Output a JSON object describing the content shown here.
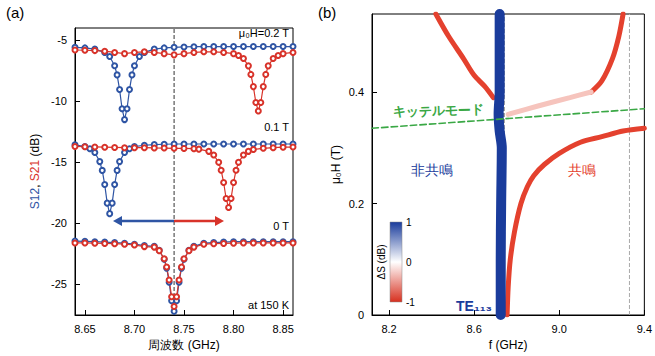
{
  "chart_data": [
    {
      "type": "line",
      "label": "(a)",
      "xlabel": "周波数 (GHz)",
      "ylabel": "S12, S21 (dB)",
      "xlim": [
        8.64,
        8.86
      ],
      "xticks": [
        8.65,
        {
          "value": 8.7,
          "label": "8.70"
        },
        8.75,
        {
          "value": 8.8,
          "label": "8.80"
        },
        8.85
      ],
      "ylim": [
        -27.5,
        -4
      ],
      "yticks": [
        -25,
        -20,
        -15,
        -10,
        -5
      ],
      "grid": false,
      "marker": "circle_open",
      "annotations": [
        "μ₀H=0.2 T",
        "0.1 T",
        "0 T",
        "at 150 K"
      ],
      "vlines": [
        8.74
      ],
      "series": [
        {
          "name": "S12",
          "color": "#2f55a4",
          "x": [
            8.64,
            8.65,
            8.66,
            8.67,
            8.675,
            8.68,
            8.6825,
            8.685,
            8.6875,
            8.69,
            8.6925,
            8.695,
            8.6975,
            8.7,
            8.705,
            8.71,
            8.72,
            8.73,
            8.74,
            8.75,
            8.76,
            8.77,
            8.78,
            8.79,
            8.8,
            8.81,
            8.82,
            8.83,
            8.84,
            8.85,
            8.86
          ],
          "values": [
            -5.58,
            -5.63,
            -5.73,
            -6.0,
            -6.33,
            -7.09,
            -7.84,
            -9.04,
            -10.61,
            -11.5,
            -10.61,
            -9.04,
            -7.84,
            -7.09,
            -6.33,
            -6.0,
            -5.73,
            -5.63,
            -5.58,
            -5.55,
            -5.53,
            -5.52,
            -5.52,
            -5.52,
            -5.52,
            -5.52,
            -5.52,
            -5.52,
            -5.52,
            -5.52,
            -5.52
          ]
        },
        {
          "name": "S21",
          "color": "#d8332a",
          "x": [
            8.64,
            8.65,
            8.66,
            8.67,
            8.68,
            8.69,
            8.7,
            8.71,
            8.72,
            8.73,
            8.74,
            8.75,
            8.76,
            8.77,
            8.78,
            8.79,
            8.8,
            8.805,
            8.81,
            8.815,
            8.8175,
            8.82,
            8.8225,
            8.825,
            8.8275,
            8.83,
            8.8325,
            8.835,
            8.84,
            8.845,
            8.85,
            8.86
          ],
          "values": [
            -5.8,
            -5.82,
            -5.85,
            -5.9,
            -6.0,
            -6.1,
            -6.0,
            -5.95,
            -6.0,
            -6.1,
            -6.2,
            -6.1,
            -6.0,
            -5.95,
            -5.95,
            -6.0,
            -6.1,
            -6.25,
            -6.5,
            -7.1,
            -7.8,
            -8.8,
            -10.1,
            -10.8,
            -10.1,
            -8.8,
            -7.8,
            -7.1,
            -6.5,
            -6.25,
            -6.1,
            -6.0
          ]
        },
        {
          "name": "S12",
          "color": "#2f55a4",
          "x": [
            8.64,
            8.65,
            8.655,
            8.66,
            8.665,
            8.6675,
            8.67,
            8.6725,
            8.675,
            8.6775,
            8.68,
            8.6825,
            8.685,
            8.69,
            8.695,
            8.7,
            8.71,
            8.72,
            8.73,
            8.74,
            8.75,
            8.76,
            8.77,
            8.78,
            8.79,
            8.8,
            8.81,
            8.82,
            8.83,
            8.84,
            8.85,
            8.86
          ],
          "values": [
            -13.57,
            -13.71,
            -13.88,
            -14.2,
            -14.94,
            -15.66,
            -16.82,
            -18.34,
            -19.2,
            -18.34,
            -16.82,
            -15.66,
            -14.94,
            -14.2,
            -13.88,
            -13.71,
            -13.6,
            -13.55,
            -13.52,
            -13.5,
            -13.5,
            -13.5,
            -13.5,
            -13.5,
            -13.5,
            -13.5,
            -13.5,
            -13.5,
            -13.5,
            -13.5,
            -13.5,
            -13.5
          ]
        },
        {
          "name": "S21",
          "color": "#d8332a",
          "x": [
            8.64,
            8.65,
            8.66,
            8.67,
            8.68,
            8.69,
            8.7,
            8.71,
            8.72,
            8.73,
            8.74,
            8.75,
            8.76,
            8.765,
            8.775,
            8.78,
            8.785,
            8.7875,
            8.79,
            8.7925,
            8.795,
            8.7975,
            8.8,
            8.8025,
            8.805,
            8.81,
            8.815,
            8.82,
            8.83,
            8.84,
            8.85,
            8.86
          ],
          "values": [
            -13.7,
            -13.72,
            -13.74,
            -13.76,
            -13.78,
            -13.8,
            -13.8,
            -13.8,
            -13.82,
            -13.83,
            -13.85,
            -13.86,
            -13.88,
            -13.92,
            -14.1,
            -14.4,
            -15.0,
            -15.65,
            -16.65,
            -17.96,
            -18.7,
            -17.96,
            -16.65,
            -15.65,
            -15.0,
            -14.4,
            -14.1,
            -13.95,
            -13.85,
            -13.8,
            -13.76,
            -13.75
          ]
        },
        {
          "name": "S12",
          "color": "#2f55a4",
          "x": [
            8.64,
            8.65,
            8.66,
            8.67,
            8.68,
            8.69,
            8.7,
            8.71,
            8.72,
            8.725,
            8.73,
            8.7325,
            8.735,
            8.7375,
            8.74,
            8.7425,
            8.745,
            8.7475,
            8.75,
            8.755,
            8.76,
            8.77,
            8.78,
            8.79,
            8.8,
            8.81,
            8.82,
            8.83,
            8.84,
            8.85,
            8.86
          ],
          "values": [
            -21.45,
            -21.47,
            -21.5,
            -21.53,
            -21.57,
            -21.62,
            -21.7,
            -21.82,
            -21.88,
            -22.2,
            -22.94,
            -23.66,
            -24.82,
            -26.34,
            -27.2,
            -26.34,
            -24.82,
            -23.66,
            -22.94,
            -22.2,
            -21.88,
            -21.62,
            -21.57,
            -21.53,
            -21.5,
            -21.5,
            -21.5,
            -21.5,
            -21.5,
            -21.5,
            -21.5
          ]
        },
        {
          "name": "S21",
          "color": "#d8332a",
          "x": [
            8.64,
            8.65,
            8.66,
            8.67,
            8.68,
            8.69,
            8.7,
            8.71,
            8.72,
            8.725,
            8.73,
            8.7325,
            8.735,
            8.7375,
            8.74,
            8.7425,
            8.745,
            8.7475,
            8.75,
            8.755,
            8.76,
            8.77,
            8.78,
            8.79,
            8.8,
            8.81,
            8.82,
            8.83,
            8.84,
            8.85,
            8.86
          ],
          "values": [
            -21.6,
            -21.6,
            -21.62,
            -21.64,
            -21.66,
            -21.7,
            -21.77,
            -21.9,
            -21.94,
            -22.23,
            -22.9,
            -23.57,
            -24.63,
            -26.0,
            -26.8,
            -26.0,
            -24.63,
            -23.57,
            -22.9,
            -22.23,
            -21.94,
            -21.7,
            -21.66,
            -21.64,
            -21.62,
            -21.6,
            -21.6,
            -21.6,
            -21.6,
            -21.6,
            -21.6
          ]
        }
      ]
    },
    {
      "type": "line",
      "label": "(b)",
      "xlabel": "f (GHz)",
      "ylabel": "μ₀H (T)",
      "xlim": [
        8.12,
        9.4
      ],
      "xticks": [
        8.2,
        8.6,
        {
          "value": 9,
          "label": "9.0"
        },
        9.4
      ],
      "ylim": [
        0,
        0.54
      ],
      "yticks": [
        0,
        0.2,
        0.4
      ],
      "grid": false,
      "annotations": [
        "非共鳴",
        "共鳴"
      ],
      "vlines": [
        8.74,
        9.33
      ],
      "colorbar": {
        "label": "ΔS (dB)",
        "range": [
          -1,
          1
        ],
        "ticks": [
          -1,
          0,
          1
        ],
        "colors": [
          "#d7301f",
          "#ffffff",
          "#1a3c9c"
        ]
      },
      "series": [
        {
          "color": "#e4412e",
          "x": [
            8.755,
            8.76,
            8.77,
            8.79,
            8.82,
            8.85,
            8.88,
            8.93,
            9.0,
            9.1,
            9.2,
            9.3,
            9.4
          ],
          "values": [
            0,
            0.05,
            0.1,
            0.15,
            0.2,
            0.23,
            0.25,
            0.27,
            0.29,
            0.31,
            0.32,
            0.33,
            0.335
          ]
        },
        {
          "color": "#e4412e",
          "x": [
            8.42,
            8.48,
            8.55,
            8.6,
            8.65,
            8.69
          ],
          "values": [
            0.54,
            0.5,
            0.46,
            0.43,
            0.41,
            0.39
          ]
        },
        {
          "color": "#e4412e",
          "x": [
            9.15,
            9.2,
            9.25,
            9.28,
            9.3
          ],
          "values": [
            0.4,
            0.42,
            0.46,
            0.5,
            0.54
          ]
        },
        {
          "color": "#f6c4bd",
          "x": [
            8.76,
            8.9,
            9.05,
            9.15
          ],
          "values": [
            0.36,
            0.375,
            0.39,
            0.4
          ]
        },
        {
          "name": "TE₁₁₃",
          "color": "#1a3c9c",
          "x": [
            8.725,
            8.725,
            8.727,
            8.73,
            8.72,
            8.715,
            8.72,
            8.72
          ],
          "values": [
            0,
            0.1,
            0.2,
            0.3,
            0.33,
            0.36,
            0.4,
            0.54
          ]
        },
        {
          "name": "キッテルモード",
          "color": "#3aa845",
          "line_style": "dashed",
          "x": [
            8.12,
            9.4
          ],
          "values": [
            0.335,
            0.37
          ]
        }
      ]
    }
  ]
}
